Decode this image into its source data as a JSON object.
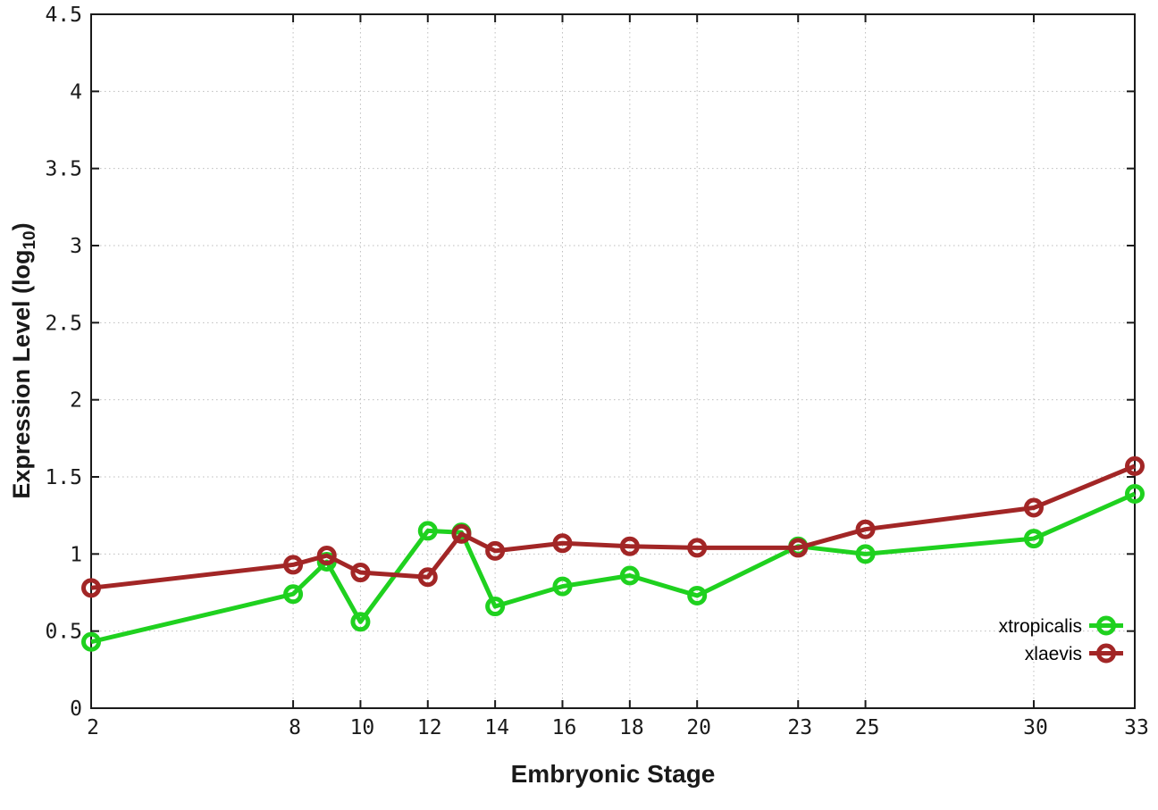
{
  "chart_data": {
    "type": "line",
    "title": "",
    "xlabel": "Embryonic Stage",
    "ylabel": "Expression Level (log10)",
    "ylabel_parts": {
      "main": "Expression Level (log",
      "sub": "10",
      "close": ")"
    },
    "x": [
      2,
      8,
      9,
      10,
      12,
      13,
      14,
      16,
      18,
      20,
      23,
      25,
      30,
      33
    ],
    "series": [
      {
        "name": "xtropicalis",
        "color": "#1fd11f",
        "marker": "open-circle",
        "values": [
          0.43,
          0.74,
          0.95,
          0.56,
          1.15,
          1.14,
          0.66,
          0.79,
          0.86,
          0.73,
          1.05,
          1.0,
          1.1,
          1.39
        ]
      },
      {
        "name": "xlaevis",
        "color": "#a22626",
        "marker": "open-circle",
        "values": [
          0.78,
          0.93,
          0.99,
          0.88,
          0.85,
          1.13,
          1.02,
          1.07,
          1.05,
          1.04,
          1.04,
          1.16,
          1.3,
          1.57
        ]
      }
    ],
    "xticks": [
      2,
      8,
      10,
      12,
      14,
      16,
      18,
      20,
      23,
      25,
      30,
      33
    ],
    "yticks": [
      0,
      0.5,
      1,
      1.5,
      2,
      2.5,
      3,
      3.5,
      4,
      4.5
    ],
    "ytick_labels": [
      "0",
      "0.5",
      "1",
      "1.5",
      "2",
      "2.5",
      "3",
      "3.5",
      "4",
      "4.5"
    ],
    "xlim": [
      2,
      33
    ],
    "ylim": [
      0,
      4.5
    ],
    "grid": true,
    "legend_position": "inside-bottom-right",
    "colors": {
      "grid": "#bdbdbd",
      "axis": "#1a1a1a",
      "background": "#ffffff",
      "legend_text": "#000000"
    }
  }
}
